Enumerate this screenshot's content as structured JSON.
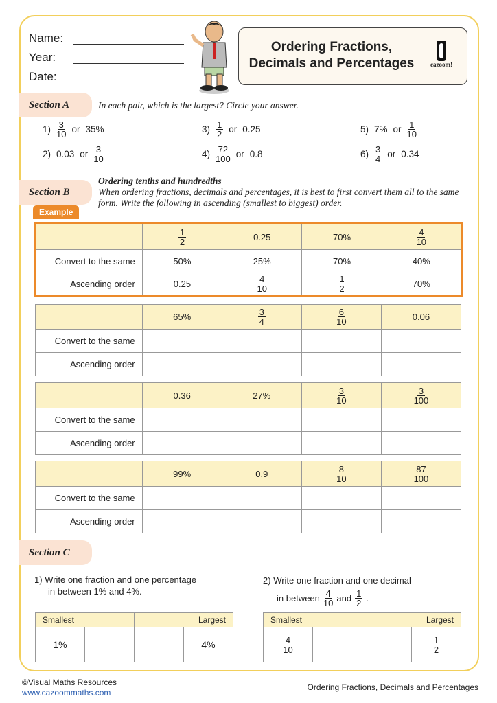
{
  "header": {
    "name_label": "Name:",
    "year_label": "Year:",
    "date_label": "Date:",
    "title_line1": "Ordering Fractions,",
    "title_line2": "Decimals and Percentages",
    "logo_text": "cazoom!"
  },
  "section_a": {
    "label": "Section A",
    "instruction": "In each pair, which is the largest? Circle your answer.",
    "questions": [
      {
        "num": "1)",
        "a": "3/10",
        "b": "35%"
      },
      {
        "num": "2)",
        "a": "0.03",
        "b": "3/10"
      },
      {
        "num": "3)",
        "a": "1/2",
        "b": "0.25"
      },
      {
        "num": "4)",
        "a": "72/100",
        "b": "0.8"
      },
      {
        "num": "5)",
        "a": "7%",
        "b": "1/10"
      },
      {
        "num": "6)",
        "a": "3/4",
        "b": "0.34"
      }
    ],
    "or": "or"
  },
  "section_b": {
    "label": "Section B",
    "heading": "Ordering tenths and hundredths",
    "instruction": "When ordering fractions, decimals and percentages, it is best to first convert them all to the same form. Write the following in ascending (smallest to biggest) order.",
    "example_label": "Example",
    "row_convert": "Convert to the same",
    "row_ascending": "Ascending order",
    "example": {
      "values": [
        "1/2",
        "0.25",
        "70%",
        "4/10"
      ],
      "convert": [
        "50%",
        "25%",
        "70%",
        "40%"
      ],
      "ascending": [
        "0.25",
        "4/10",
        "1/2",
        "70%"
      ]
    },
    "tables": [
      {
        "values": [
          "65%",
          "3/4",
          "6/10",
          "0.06"
        ]
      },
      {
        "values": [
          "0.36",
          "27%",
          "3/10",
          "3/100"
        ]
      },
      {
        "values": [
          "99%",
          "0.9",
          "8/10",
          "87/100"
        ]
      }
    ]
  },
  "section_c": {
    "label": "Section C",
    "q1": {
      "num": "1)",
      "line1": "Write one fraction and one percentage",
      "line2": "in between 1% and 4%.",
      "smallest": "Smallest",
      "largest": "Largest",
      "first": "1%",
      "last": "4%"
    },
    "q2": {
      "num": "2)",
      "line1": "Write one fraction and one decimal",
      "line2_pre": "in between",
      "a": "4/10",
      "and": "and",
      "b": "1/2",
      "end": ".",
      "smallest": "Smallest",
      "largest": "Largest",
      "first": "4/10",
      "last": "1/2"
    }
  },
  "footer": {
    "copyright": "©Visual Maths Resources",
    "url": "www.cazoommaths.com",
    "title": "Ordering Fractions, Decimals and Percentages"
  },
  "colors": {
    "frame": "#f2cf5b",
    "section_tab": "#fbe3d3",
    "table_header": "#fcf2c6",
    "example_border": "#ec8a2a"
  }
}
